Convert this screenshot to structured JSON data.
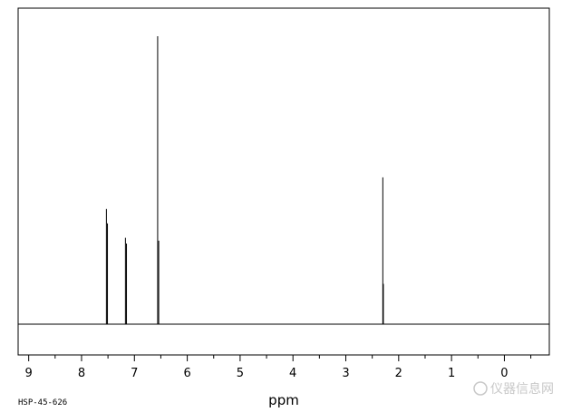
{
  "chart_data": {
    "type": "line",
    "xlabel": "ppm",
    "x_reversed": true,
    "xlim": [
      9.2,
      -0.85
    ],
    "x_ticks": [
      9,
      8,
      7,
      6,
      5,
      4,
      3,
      2,
      1,
      0
    ],
    "x_tick_labels": [
      "9",
      "8",
      "7",
      "6",
      "5",
      "4",
      "3",
      "2",
      "1",
      "0"
    ],
    "x_minor_step": 0.5,
    "ylim": [
      0,
      1.0
    ],
    "grid": false,
    "peaks": [
      {
        "ppm": 7.53,
        "intensity": 0.4
      },
      {
        "ppm": 7.51,
        "intensity": 0.35
      },
      {
        "ppm": 7.17,
        "intensity": 0.3
      },
      {
        "ppm": 7.15,
        "intensity": 0.28
      },
      {
        "ppm": 6.56,
        "intensity": 1.0
      },
      {
        "ppm": 6.54,
        "intensity": 0.29
      },
      {
        "ppm": 2.3,
        "intensity": 0.51
      },
      {
        "ppm": 2.29,
        "intensity": 0.14
      }
    ]
  },
  "footer": {
    "sample_id": "HSP-45-626",
    "watermark": "仪器信息网"
  },
  "colors": {
    "line": "#000000",
    "background": "#ffffff",
    "watermark": "#c8c8c8"
  }
}
